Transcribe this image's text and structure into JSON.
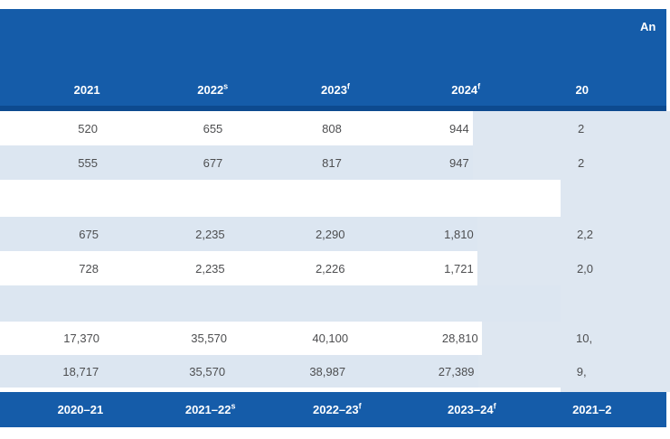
{
  "table": {
    "annual_note_partial": "An",
    "top_header": {
      "cols": [
        {
          "label": "2021",
          "sup": ""
        },
        {
          "label": "2022",
          "sup": "s"
        },
        {
          "label": "2023",
          "sup": "f"
        },
        {
          "label": "2024",
          "sup": "f"
        }
      ],
      "annual_partial": "20"
    },
    "rows": [
      {
        "cells": [
          "520",
          "655",
          "808",
          "944"
        ],
        "annual_partial": "2"
      },
      {
        "cells": [
          "555",
          "677",
          "817",
          "947"
        ],
        "annual_partial": "2"
      },
      {
        "cells": [
          "",
          "",
          "",
          ""
        ],
        "annual_partial": ""
      },
      {
        "cells": [
          "675",
          "2,235",
          "2,290",
          "1,810"
        ],
        "annual_partial": "2,2"
      },
      {
        "cells": [
          "728",
          "2,235",
          "2,226",
          "1,721"
        ],
        "annual_partial": "2,0"
      },
      {
        "cells": [
          "",
          "",
          "",
          ""
        ],
        "annual_partial": ""
      },
      {
        "cells": [
          "17,370",
          "35,570",
          "40,100",
          "28,810"
        ],
        "annual_partial": "10,"
      },
      {
        "cells": [
          "18,717",
          "35,570",
          "38,987",
          "27,389"
        ],
        "annual_partial": "9,"
      }
    ],
    "bottom_header": {
      "cols": [
        {
          "label": "2020–21",
          "sup": ""
        },
        {
          "label": "2021–22",
          "sup": "s"
        },
        {
          "label": "2022–23",
          "sup": "f"
        },
        {
          "label": "2023–24",
          "sup": "f"
        }
      ],
      "annual_partial": "2021–2"
    },
    "colors": {
      "band_blue": "#155CA9",
      "band_dark_edge": "#0D4A8F",
      "stripe_row": "#DCE6F1",
      "annual_column_shade": "#DEE7F1",
      "number_text": "#4D4E50",
      "header_text": "#FFFFFF"
    }
  }
}
